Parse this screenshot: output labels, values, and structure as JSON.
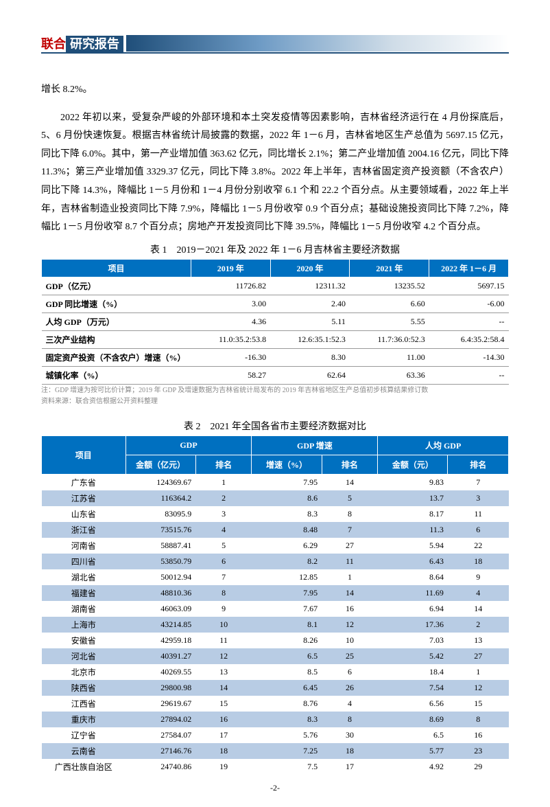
{
  "header": {
    "logo_red": "联合",
    "logo_box": "研究报告"
  },
  "paragraphs": {
    "p0": "增长 8.2%。",
    "p1": "2022 年初以来，受复杂严峻的外部环境和本土突发疫情等因素影响，吉林省经济运行在 4 月份探底后，5、6 月份快速恢复。根据吉林省统计局披露的数据，2022 年 1－6 月，吉林省地区生产总值为 5697.15 亿元，同比下降 6.0%。其中，第一产业增加值 363.62 亿元，同比增长 2.1%；第二产业增加值 2004.16 亿元，同比下降 11.3%；第三产业增加值 3329.37 亿元，同比下降 3.8%。2022 年上半年，吉林省固定资产投资额（不含农户）同比下降 14.3%，降幅比 1－5 月份和 1－4 月份分别收窄 6.1 个和 22.2 个百分点。从主要领域看，2022 年上半年，吉林省制造业投资同比下降 7.9%，降幅比 1－5 月份收窄 0.9 个百分点；基础设施投资同比下降 7.2%，降幅比 1－5 月份收窄 8.7 个百分点；房地产开发投资同比下降 39.5%，降幅比 1－5 月份收窄 4.2 个百分点。"
  },
  "table1": {
    "title": "表 1　2019－2021 年及 2022 年 1－6 月吉林省主要经济数据",
    "headers": [
      "项目",
      "2019 年",
      "2020 年",
      "2021 年",
      "2022 年 1－6 月"
    ],
    "rows": [
      {
        "label": "GDP（亿元）",
        "v": [
          "11726.82",
          "12311.32",
          "13235.52",
          "5697.15"
        ]
      },
      {
        "label": "GDP 同比增速（%）",
        "v": [
          "3.00",
          "2.40",
          "6.60",
          "-6.00"
        ]
      },
      {
        "label": "人均 GDP（万元）",
        "v": [
          "4.36",
          "5.11",
          "5.55",
          "--"
        ]
      },
      {
        "label": "三次产业结构",
        "v": [
          "11.0:35.2:53.8",
          "12.6:35.1:52.3",
          "11.7:36.0:52.3",
          "6.4:35.2:58.4"
        ]
      },
      {
        "label": "固定资产投资（不含农户）增速（%）",
        "v": [
          "-16.30",
          "8.30",
          "11.00",
          "-14.30"
        ]
      },
      {
        "label": "城镇化率（%）",
        "v": [
          "58.27",
          "62.64",
          "63.36",
          "--"
        ]
      }
    ],
    "note1": "注：GDP 增速为按可比价计算；2019 年 GDP 及增速数据为吉林省统计局发布的 2019 年吉林省地区生产总值初步核算结果修订数",
    "note2": "资料来源：联合资信根据公开资料整理"
  },
  "table2": {
    "title": "表 2　2021 年全国各省市主要经济数据对比",
    "group_headers": [
      "项目",
      "GDP",
      "GDP 增速",
      "人均 GDP"
    ],
    "sub_headers": [
      "金额（亿元）",
      "排名",
      "增速（%）",
      "排名",
      "金额（元）",
      "排名"
    ],
    "rows": [
      {
        "prov": "广东省",
        "v": [
          "124369.67",
          "1",
          "7.95",
          "14",
          "9.83",
          "7"
        ]
      },
      {
        "prov": "江苏省",
        "v": [
          "116364.2",
          "2",
          "8.6",
          "5",
          "13.7",
          "3"
        ]
      },
      {
        "prov": "山东省",
        "v": [
          "83095.9",
          "3",
          "8.3",
          "8",
          "8.17",
          "11"
        ]
      },
      {
        "prov": "浙江省",
        "v": [
          "73515.76",
          "4",
          "8.48",
          "7",
          "11.3",
          "6"
        ]
      },
      {
        "prov": "河南省",
        "v": [
          "58887.41",
          "5",
          "6.29",
          "27",
          "5.94",
          "22"
        ]
      },
      {
        "prov": "四川省",
        "v": [
          "53850.79",
          "6",
          "8.2",
          "11",
          "6.43",
          "18"
        ]
      },
      {
        "prov": "湖北省",
        "v": [
          "50012.94",
          "7",
          "12.85",
          "1",
          "8.64",
          "9"
        ]
      },
      {
        "prov": "福建省",
        "v": [
          "48810.36",
          "8",
          "7.95",
          "14",
          "11.69",
          "4"
        ]
      },
      {
        "prov": "湖南省",
        "v": [
          "46063.09",
          "9",
          "7.67",
          "16",
          "6.94",
          "14"
        ]
      },
      {
        "prov": "上海市",
        "v": [
          "43214.85",
          "10",
          "8.1",
          "12",
          "17.36",
          "2"
        ]
      },
      {
        "prov": "安徽省",
        "v": [
          "42959.18",
          "11",
          "8.26",
          "10",
          "7.03",
          "13"
        ]
      },
      {
        "prov": "河北省",
        "v": [
          "40391.27",
          "12",
          "6.5",
          "25",
          "5.42",
          "27"
        ]
      },
      {
        "prov": "北京市",
        "v": [
          "40269.55",
          "13",
          "8.5",
          "6",
          "18.4",
          "1"
        ]
      },
      {
        "prov": "陕西省",
        "v": [
          "29800.98",
          "14",
          "6.45",
          "26",
          "7.54",
          "12"
        ]
      },
      {
        "prov": "江西省",
        "v": [
          "29619.67",
          "15",
          "8.76",
          "4",
          "6.56",
          "15"
        ]
      },
      {
        "prov": "重庆市",
        "v": [
          "27894.02",
          "16",
          "8.3",
          "8",
          "8.69",
          "8"
        ]
      },
      {
        "prov": "辽宁省",
        "v": [
          "27584.07",
          "17",
          "5.76",
          "30",
          "6.5",
          "16"
        ]
      },
      {
        "prov": "云南省",
        "v": [
          "27146.76",
          "18",
          "7.25",
          "18",
          "5.77",
          "23"
        ]
      },
      {
        "prov": "广西壮族自治区",
        "v": [
          "24740.86",
          "19",
          "7.5",
          "17",
          "4.92",
          "29"
        ]
      }
    ]
  },
  "page_number": "-2-",
  "colors": {
    "header_blue": "#1f4e79",
    "table_header_blue": "#0070c0",
    "row_alt_blue": "#b8cce4",
    "logo_red": "#c00000"
  }
}
